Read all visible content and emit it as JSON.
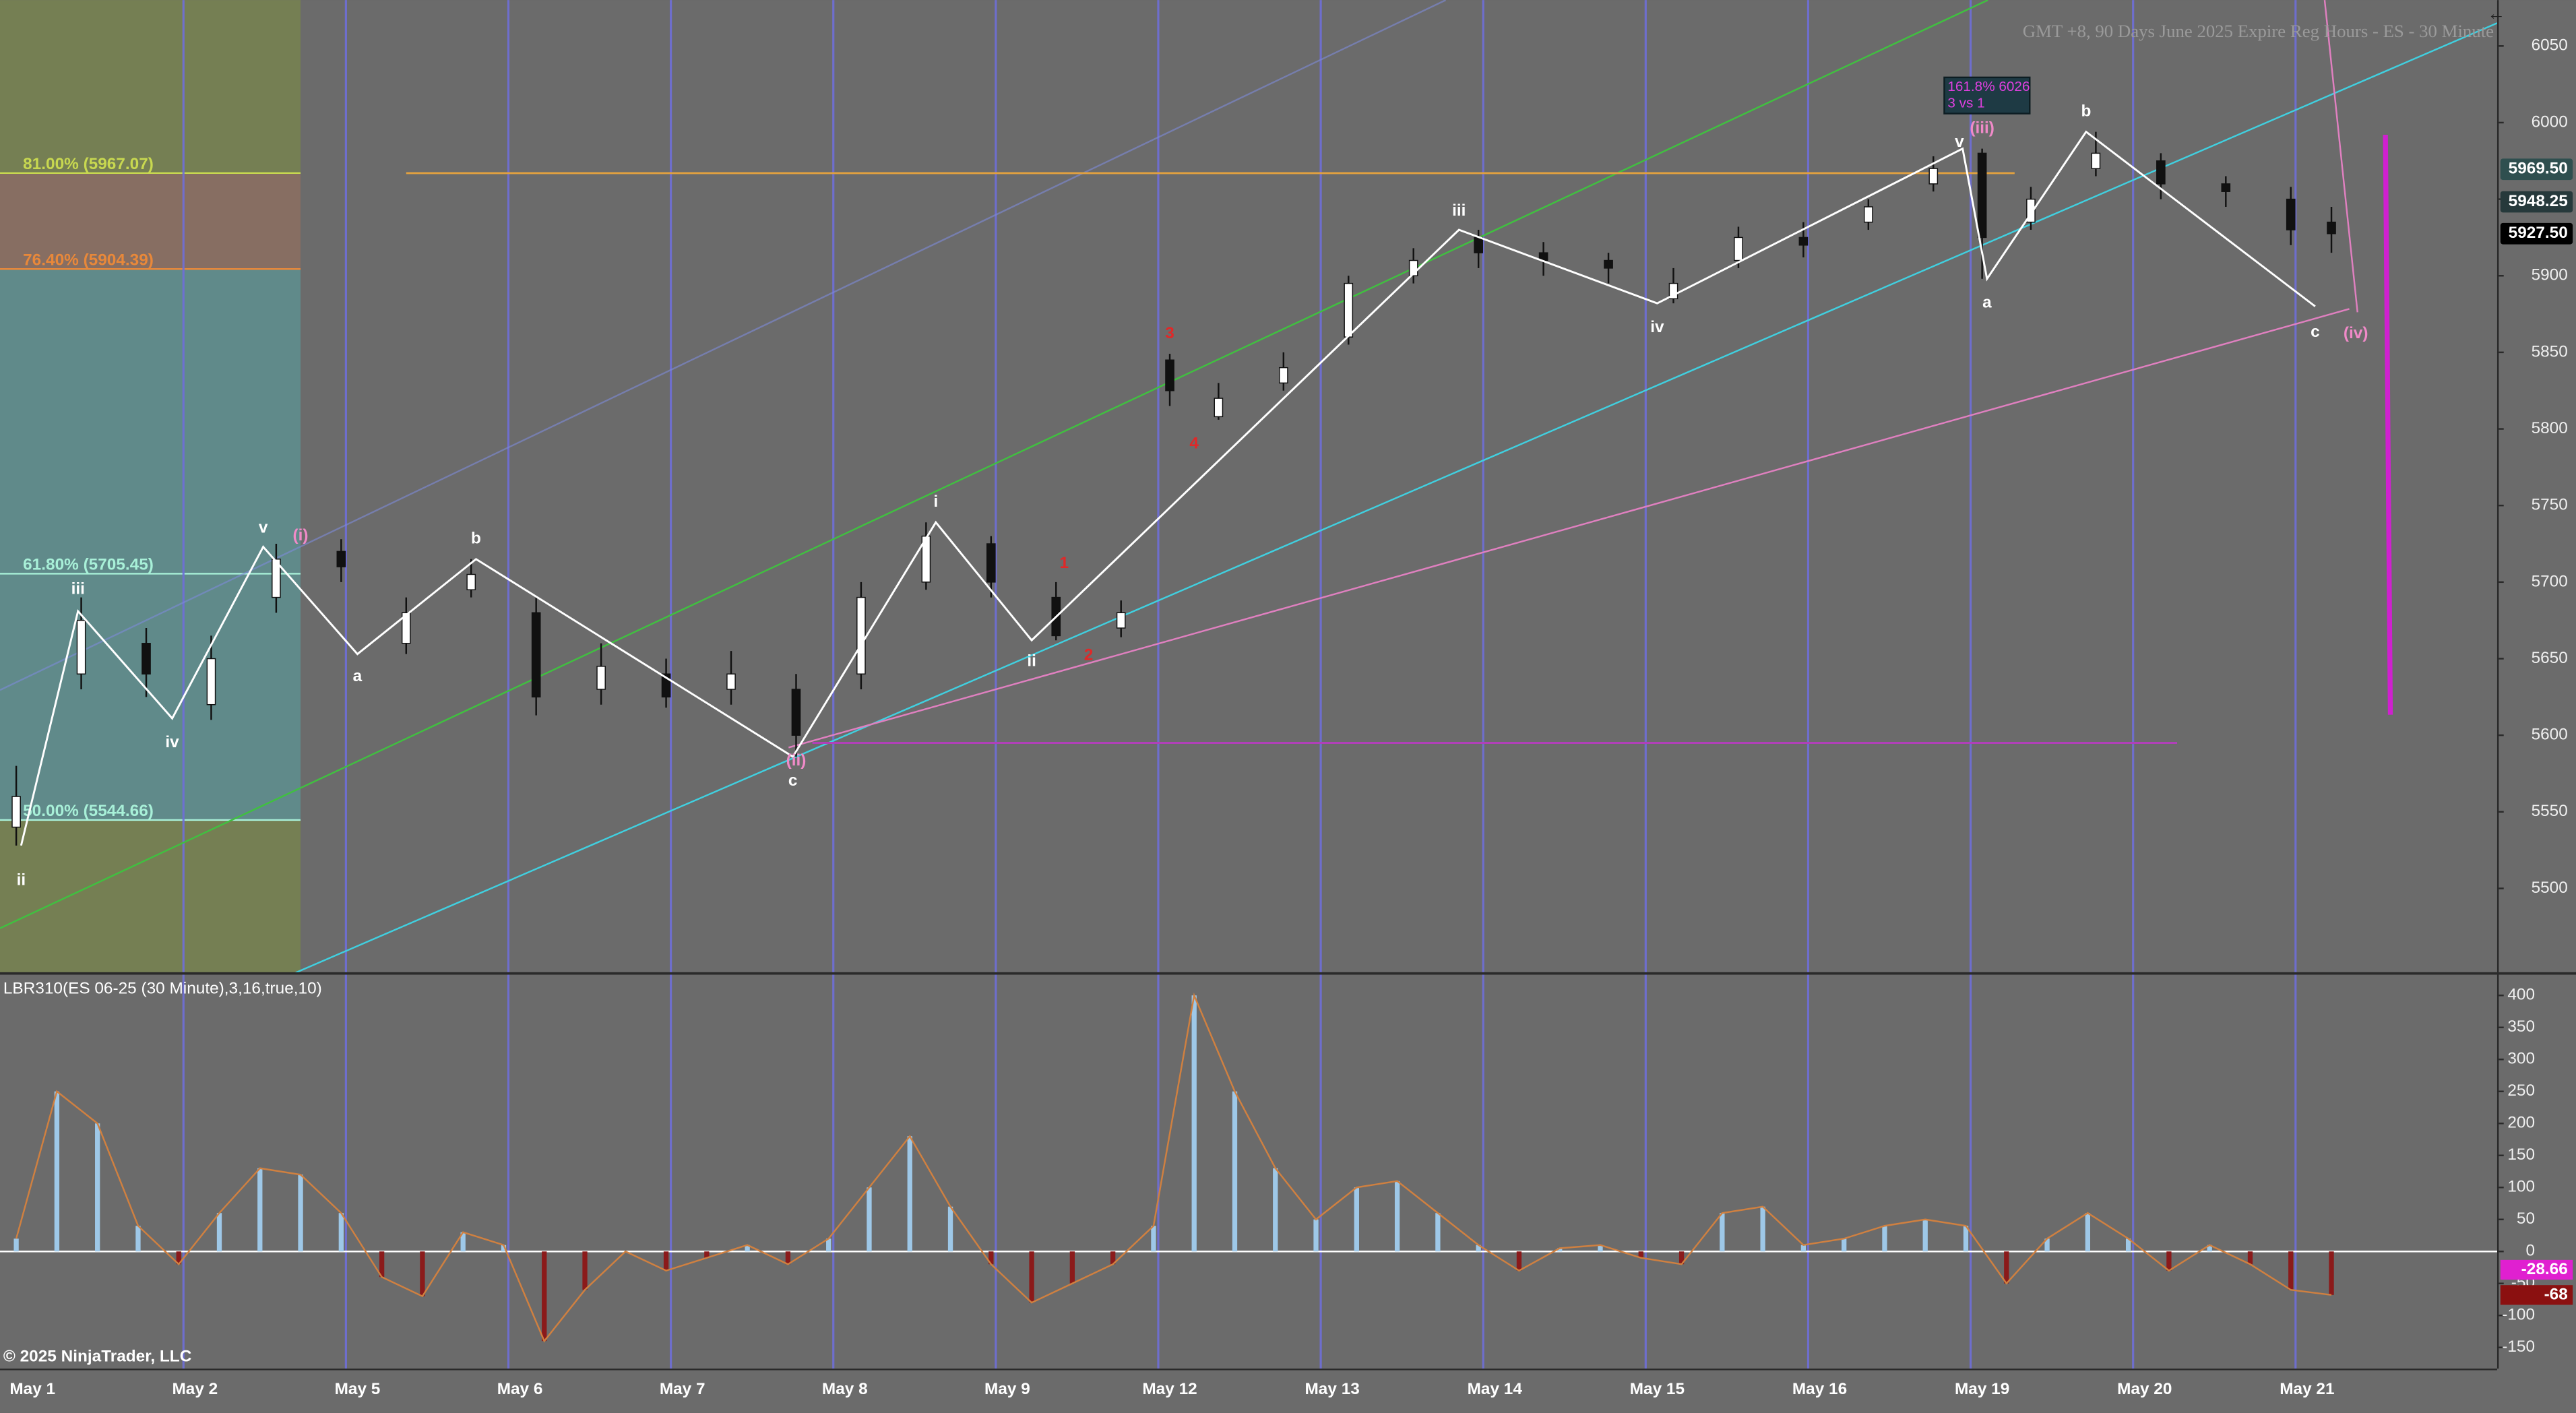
{
  "chart_data": [
    {
      "type": "candlestick",
      "title": "GMT +8, 90 Days June 2025 Expire Reg Hours - ES - 30 Minute",
      "categories": [
        "May 1",
        "May 2",
        "May 5",
        "May 6",
        "May 7",
        "May 8",
        "May 9",
        "May 12",
        "May 13",
        "May 14",
        "May 15",
        "May 16",
        "May 19",
        "May 20",
        "May 21"
      ],
      "xlim": [
        -0.2,
        15.17
      ],
      "ylim": [
        5445,
        6080
      ],
      "yticks": [
        5500,
        5550,
        5600,
        5650,
        5700,
        5750,
        5800,
        5850,
        5900,
        5950,
        6000,
        6050
      ],
      "candles": {
        "x": [
          -0.1,
          0.3,
          0.7,
          1.1,
          1.5,
          1.9,
          2.3,
          2.7,
          3.1,
          3.5,
          3.9,
          4.3,
          4.7,
          5.1,
          5.5,
          5.9,
          6.3,
          6.7,
          7.0,
          7.3,
          7.7,
          8.1,
          8.5,
          8.9,
          9.3,
          9.7,
          10.1,
          10.5,
          10.9,
          11.3,
          11.7,
          12.0,
          12.3,
          12.7,
          13.1,
          13.5,
          13.9,
          14.15
        ],
        "open": [
          5540,
          5640,
          5660,
          5620,
          5690,
          5720,
          5660,
          5695,
          5680,
          5630,
          5640,
          5630,
          5630,
          5640,
          5700,
          5725,
          5690,
          5670,
          5845,
          5808,
          5830,
          5860,
          5900,
          5925,
          5915,
          5910,
          5885,
          5910,
          5925,
          5935,
          5960,
          5980,
          5935,
          5970,
          5975,
          5960,
          5950,
          5935
        ],
        "high": [
          5580,
          5690,
          5670,
          5665,
          5725,
          5728,
          5690,
          5715,
          5690,
          5660,
          5650,
          5655,
          5640,
          5700,
          5739,
          5730,
          5700,
          5688,
          5849,
          5830,
          5850,
          5900,
          5918,
          5930,
          5922,
          5915,
          5905,
          5932,
          5935,
          5950,
          5978,
          5983,
          5958,
          5994,
          5980,
          5965,
          5958,
          5945
        ],
        "low": [
          5528,
          5630,
          5625,
          5610,
          5680,
          5700,
          5653,
          5690,
          5613,
          5620,
          5618,
          5620,
          5586,
          5630,
          5695,
          5690,
          5662,
          5664,
          5815,
          5806,
          5825,
          5855,
          5895,
          5905,
          5900,
          5895,
          5882,
          5905,
          5912,
          5930,
          5955,
          5898,
          5930,
          5965,
          5950,
          5945,
          5920,
          5915
        ],
        "close": [
          5560,
          5675,
          5640,
          5650,
          5715,
          5710,
          5680,
          5705,
          5625,
          5645,
          5625,
          5640,
          5600,
          5690,
          5730,
          5700,
          5665,
          5680,
          5825,
          5820,
          5840,
          5895,
          5910,
          5915,
          5910,
          5905,
          5895,
          5925,
          5920,
          5945,
          5970,
          5925,
          5950,
          5980,
          5960,
          5955,
          5930,
          5927.5
        ]
      },
      "up_color": "#ffffff",
      "down_color": "#111111",
      "waves": {
        "x": [
          -0.07,
          0.28,
          0.86,
          1.42,
          2.0,
          2.73,
          4.68,
          5.56,
          6.15,
          8.78,
          10.0,
          11.88,
          12.03,
          12.64,
          14.05
        ],
        "y": [
          5528,
          5681,
          5611,
          5723,
          5653,
          5715,
          5586,
          5739,
          5662,
          5930,
          5882,
          5983,
          5898,
          5994,
          5880
        ],
        "color": "#ffffff"
      },
      "wave_labels": [
        {
          "text": "ii",
          "x": -0.07,
          "y": 5505,
          "color": "#ffffff"
        },
        {
          "text": "iii",
          "x": 0.28,
          "y": 5695,
          "color": "#ffffff"
        },
        {
          "text": "iv",
          "x": 0.86,
          "y": 5595,
          "color": "#ffffff"
        },
        {
          "text": "v",
          "x": 1.42,
          "y": 5735,
          "color": "#ffffff"
        },
        {
          "text": "a",
          "x": 2.0,
          "y": 5638,
          "color": "#ffffff"
        },
        {
          "text": "b",
          "x": 2.73,
          "y": 5728,
          "color": "#ffffff"
        },
        {
          "text": "c",
          "x": 4.68,
          "y": 5570,
          "color": "#ffffff"
        },
        {
          "text": "i",
          "x": 5.56,
          "y": 5752,
          "color": "#ffffff"
        },
        {
          "text": "ii",
          "x": 6.15,
          "y": 5648,
          "color": "#ffffff"
        },
        {
          "text": "iii",
          "x": 8.78,
          "y": 5942,
          "color": "#ffffff"
        },
        {
          "text": "iv",
          "x": 10.0,
          "y": 5866,
          "color": "#ffffff"
        },
        {
          "text": "v",
          "x": 11.86,
          "y": 5987,
          "color": "#ffffff"
        },
        {
          "text": "a",
          "x": 12.03,
          "y": 5882,
          "color": "#ffffff"
        },
        {
          "text": "b",
          "x": 12.64,
          "y": 6007,
          "color": "#ffffff"
        },
        {
          "text": "c",
          "x": 14.05,
          "y": 5863,
          "color": "#ffffff"
        },
        {
          "text": "(i)",
          "x": 1.65,
          "y": 5730,
          "color": "#f08ac8"
        },
        {
          "text": "(ii)",
          "x": 4.7,
          "y": 5583,
          "color": "#f08ac8"
        },
        {
          "text": "(iii)",
          "x": 12.0,
          "y": 5996,
          "color": "#f08ac8"
        },
        {
          "text": "(iv)",
          "x": 14.3,
          "y": 5862,
          "color": "#f08ac8"
        },
        {
          "text": "1",
          "x": 6.35,
          "y": 5712,
          "color": "#e02828"
        },
        {
          "text": "2",
          "x": 6.5,
          "y": 5652,
          "color": "#e02828"
        },
        {
          "text": "3",
          "x": 7.0,
          "y": 5862,
          "color": "#e02828"
        },
        {
          "text": "4",
          "x": 7.15,
          "y": 5790,
          "color": "#e02828"
        }
      ],
      "fib_levels": [
        {
          "label": "81.00% (5967.07)",
          "value": 5967.07,
          "color": "#c8d850"
        },
        {
          "label": "76.40% (5904.39)",
          "value": 5904.39,
          "color": "#e8883a"
        },
        {
          "label": "61.80% (5705.45)",
          "value": 5705.45,
          "color": "#a8f0d8"
        },
        {
          "label": "50.00% (5544.66)",
          "value": 5544.66,
          "color": "#a8f0d8"
        }
      ],
      "fib_x": [
        -0.2,
        1.65
      ],
      "zone_colors": [
        "#77834f",
        "#8c6f60",
        "#5e8f8f",
        "#5e8f8f",
        "#77834f"
      ],
      "levels": [
        {
          "value": 5967,
          "x": [
            2.3,
            12.2
          ],
          "color": "#e0a040"
        },
        {
          "value": 5595,
          "x": [
            4.8,
            13.2
          ],
          "color": "#b040b8"
        }
      ],
      "annotation": {
        "lines": [
          "161.8% 6026",
          "3 vs 1"
        ],
        "x": 12.03,
        "y": 6022
      },
      "price_flags": [
        {
          "value": 5969.5,
          "label": "5969.50",
          "color": "#2f4f4f"
        },
        {
          "value": 5948.25,
          "label": "5948.25",
          "color": "#26393b"
        },
        {
          "value": 5927.5,
          "label": "5927.50",
          "color": "#000000"
        }
      ]
    },
    {
      "type": "bar",
      "title": "LBR310(ES 06-25 (30 Minute),3,16,true,10)",
      "x": [
        -0.1,
        0.15,
        0.4,
        0.65,
        0.9,
        1.15,
        1.4,
        1.65,
        1.9,
        2.15,
        2.4,
        2.65,
        2.9,
        3.15,
        3.4,
        3.65,
        3.9,
        4.15,
        4.4,
        4.65,
        4.9,
        5.15,
        5.4,
        5.65,
        5.9,
        6.15,
        6.4,
        6.65,
        6.9,
        7.15,
        7.4,
        7.65,
        7.9,
        8.15,
        8.4,
        8.65,
        8.9,
        9.15,
        9.4,
        9.65,
        9.9,
        10.15,
        10.4,
        10.65,
        10.9,
        11.15,
        11.4,
        11.65,
        11.9,
        12.15,
        12.4,
        12.65,
        12.9,
        13.15,
        13.4,
        13.65,
        13.9,
        14.15
      ],
      "values": [
        20,
        250,
        200,
        40,
        -20,
        60,
        130,
        120,
        60,
        -40,
        -70,
        30,
        10,
        -140,
        -60,
        0,
        -30,
        -10,
        10,
        -20,
        20,
        100,
        180,
        70,
        -20,
        -80,
        -50,
        -20,
        40,
        400,
        250,
        130,
        50,
        100,
        110,
        60,
        10,
        -30,
        5,
        10,
        -10,
        -20,
        60,
        70,
        10,
        20,
        40,
        50,
        40,
        -50,
        20,
        60,
        20,
        -30,
        10,
        -20,
        -60,
        -68
      ],
      "xlim": [
        -0.2,
        15.17
      ],
      "ylim": [
        -183,
        433
      ],
      "yticks": [
        -150,
        -100,
        -50,
        0,
        50,
        100,
        150,
        200,
        250,
        300,
        350,
        400
      ],
      "pos_color": "#9ec8e8",
      "neg_color": "#8b1a1a",
      "line_color": "#d08040",
      "flags": [
        {
          "value": -28.66,
          "label": "-28.66",
          "color": "#e020d0"
        },
        {
          "value": -68,
          "label": "-68",
          "color": "#8b1010"
        }
      ],
      "copyright": "© 2025 NinjaTrader, LLC"
    }
  ]
}
